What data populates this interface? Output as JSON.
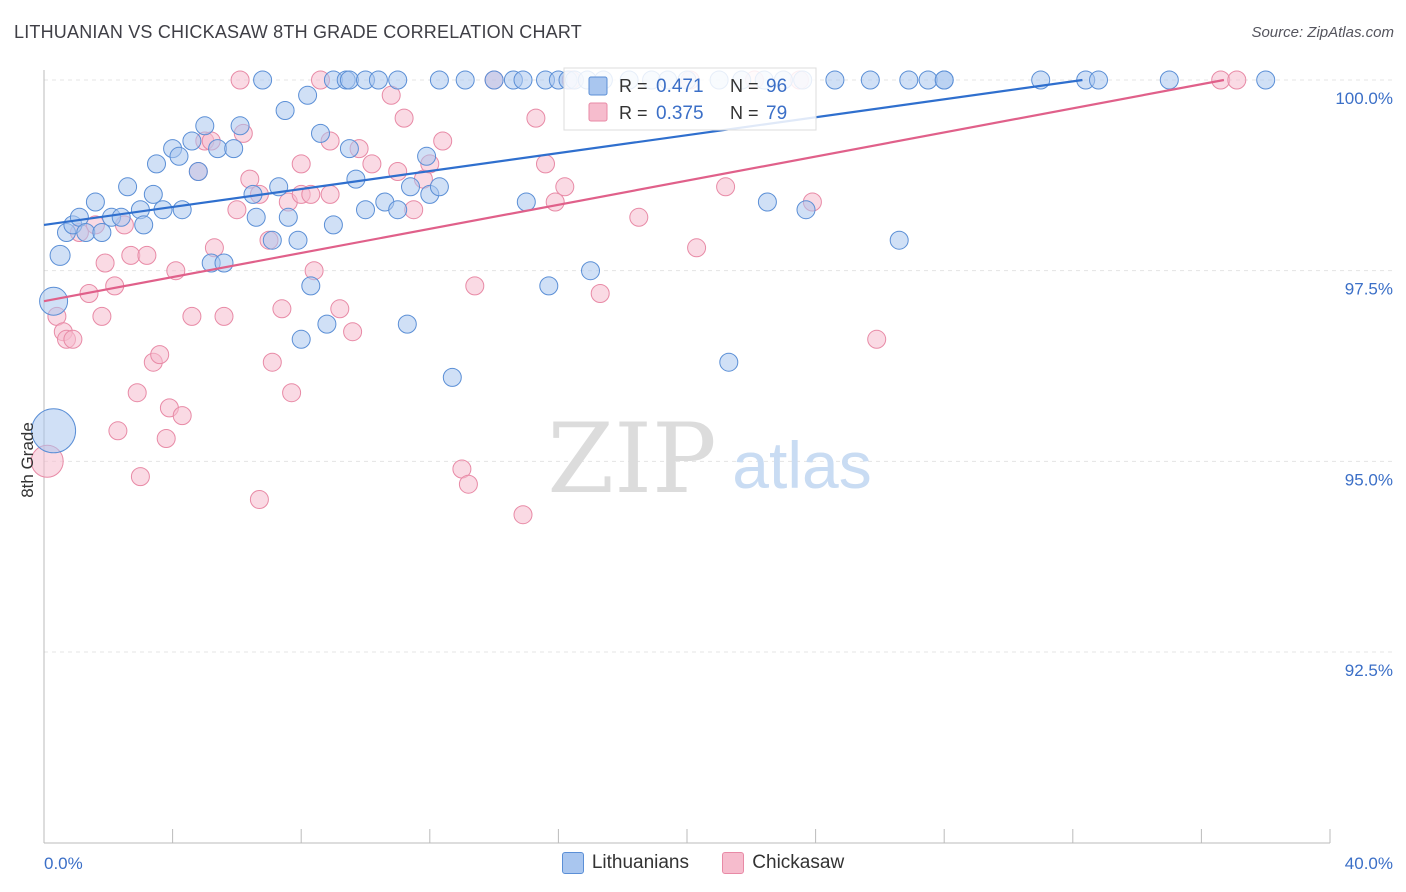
{
  "header": {
    "title": "LITHUANIAN VS CHICKASAW 8TH GRADE CORRELATION CHART",
    "source": "Source: ZipAtlas.com"
  },
  "watermark": {
    "zip": "ZIP",
    "atlas": "atlas"
  },
  "colors": {
    "blue_fill": "#a9c6ef",
    "blue_stroke": "#5b8fd6",
    "blue_line": "#2f6fce",
    "pink_fill": "#f6bccd",
    "pink_stroke": "#e88aa6",
    "pink_line": "#e0608a",
    "tick_label": "#3b6fc7"
  },
  "stats_legend": {
    "rows": [
      {
        "r_label": "R = ",
        "r_value": "0.471",
        "n_label": "N = ",
        "n_value": "96"
      },
      {
        "r_label": "R = ",
        "r_value": "0.375",
        "n_label": "N = ",
        "n_value": "79"
      }
    ]
  },
  "chart_data": {
    "type": "scatter",
    "title": "LITHUANIAN VS CHICKASAW 8TH GRADE CORRELATION CHART",
    "xlabel": "",
    "ylabel": "8th Grade",
    "xlim": [
      0,
      40
    ],
    "ylim": [
      90.0,
      100.3
    ],
    "x_tick_labels": [
      "0.0%",
      "40.0%"
    ],
    "y_ticks": [
      100.0,
      97.5,
      95.0,
      92.5
    ],
    "y_tick_labels": [
      "100.0%",
      "97.5%",
      "95.0%",
      "92.5%"
    ],
    "grid": true,
    "legend_position": "bottom",
    "series": [
      {
        "name": "Lithuanians",
        "r": 0.471,
        "n": 96,
        "trend": [
          [
            0.0,
            98.1
          ],
          [
            32.3,
            100.0
          ]
        ],
        "points": [
          [
            0.3,
            97.1,
            14
          ],
          [
            0.3,
            95.4,
            22
          ],
          [
            0.5,
            97.7,
            10
          ],
          [
            0.7,
            98.0,
            9
          ],
          [
            0.9,
            98.1,
            9
          ],
          [
            1.1,
            98.2,
            9
          ],
          [
            1.3,
            98.0,
            9
          ],
          [
            1.6,
            98.4,
            9
          ],
          [
            1.8,
            98.0,
            9
          ],
          [
            2.1,
            98.2,
            9
          ],
          [
            2.4,
            98.2,
            9
          ],
          [
            2.6,
            98.6,
            9
          ],
          [
            3.0,
            98.3,
            9
          ],
          [
            3.1,
            98.1,
            9
          ],
          [
            3.4,
            98.5,
            9
          ],
          [
            3.5,
            98.9,
            9
          ],
          [
            3.7,
            98.3,
            9
          ],
          [
            4.0,
            99.1,
            9
          ],
          [
            4.2,
            99.0,
            9
          ],
          [
            4.3,
            98.3,
            9
          ],
          [
            4.6,
            99.2,
            9
          ],
          [
            4.8,
            98.8,
            9
          ],
          [
            5.0,
            99.4,
            9
          ],
          [
            5.2,
            97.6,
            9
          ],
          [
            5.4,
            99.1,
            9
          ],
          [
            5.6,
            97.6,
            9
          ],
          [
            5.9,
            99.1,
            9
          ],
          [
            6.1,
            99.4,
            9
          ],
          [
            6.5,
            98.5,
            9
          ],
          [
            6.6,
            98.2,
            9
          ],
          [
            6.8,
            100.0,
            9
          ],
          [
            7.1,
            97.9,
            9
          ],
          [
            7.3,
            98.6,
            9
          ],
          [
            7.5,
            99.6,
            9
          ],
          [
            7.6,
            98.2,
            9
          ],
          [
            7.9,
            97.9,
            9
          ],
          [
            8.2,
            99.8,
            9
          ],
          [
            8.0,
            96.6,
            9
          ],
          [
            8.3,
            97.3,
            9
          ],
          [
            8.6,
            99.3,
            9
          ],
          [
            8.8,
            96.8,
            9
          ],
          [
            9.0,
            98.1,
            9
          ],
          [
            9.0,
            100.0,
            9
          ],
          [
            9.4,
            100.0,
            9
          ],
          [
            9.5,
            100.0,
            9
          ],
          [
            9.5,
            99.1,
            9
          ],
          [
            9.7,
            98.7,
            9
          ],
          [
            10.0,
            100.0,
            9
          ],
          [
            10.0,
            98.3,
            9
          ],
          [
            10.4,
            100.0,
            9
          ],
          [
            10.6,
            98.4,
            9
          ],
          [
            11.0,
            100.0,
            9
          ],
          [
            11.0,
            98.3,
            9
          ],
          [
            11.3,
            96.8,
            9
          ],
          [
            11.4,
            98.6,
            9
          ],
          [
            11.9,
            99.0,
            9
          ],
          [
            12.0,
            98.5,
            9
          ],
          [
            12.3,
            98.6,
            9
          ],
          [
            12.3,
            100.0,
            9
          ],
          [
            12.7,
            96.1,
            9
          ],
          [
            13.1,
            100.0,
            9
          ],
          [
            14.0,
            100.0,
            9
          ],
          [
            14.6,
            100.0,
            9
          ],
          [
            14.9,
            100.0,
            9
          ],
          [
            15.0,
            98.4,
            9
          ],
          [
            15.6,
            100.0,
            9
          ],
          [
            15.7,
            97.3,
            9
          ],
          [
            16.0,
            100.0,
            9
          ],
          [
            16.3,
            100.0,
            9
          ],
          [
            16.5,
            100.0,
            9
          ],
          [
            16.9,
            100.0,
            9
          ],
          [
            17.0,
            97.5,
            9
          ],
          [
            17.4,
            100.0,
            9
          ],
          [
            18.2,
            100.0,
            9
          ],
          [
            18.9,
            100.0,
            9
          ],
          [
            19.4,
            100.0,
            9
          ],
          [
            20.0,
            100.0,
            9
          ],
          [
            21.0,
            100.0,
            9
          ],
          [
            21.3,
            96.3,
            9
          ],
          [
            21.7,
            100.0,
            9
          ],
          [
            22.4,
            100.0,
            9
          ],
          [
            23.0,
            100.0,
            9
          ],
          [
            23.6,
            100.0,
            9
          ],
          [
            22.5,
            98.4,
            9
          ],
          [
            23.7,
            98.3,
            9
          ],
          [
            24.6,
            100.0,
            9
          ],
          [
            25.7,
            100.0,
            9
          ],
          [
            26.6,
            97.9,
            9
          ],
          [
            26.9,
            100.0,
            9
          ],
          [
            28.0,
            100.0,
            9
          ],
          [
            27.5,
            100.0,
            9
          ],
          [
            28.0,
            100.0,
            9
          ],
          [
            31.0,
            100.0,
            9
          ],
          [
            32.4,
            100.0,
            9
          ],
          [
            32.8,
            100.0,
            9
          ],
          [
            35.0,
            100.0,
            9
          ],
          [
            38.0,
            100.0,
            9
          ]
        ]
      },
      {
        "name": "Chickasaw",
        "r": 0.375,
        "n": 79,
        "trend": [
          [
            0.0,
            97.1
          ],
          [
            36.7,
            100.0
          ]
        ],
        "points": [
          [
            0.1,
            95.0,
            16
          ],
          [
            0.4,
            96.9,
            9
          ],
          [
            0.6,
            96.7,
            9
          ],
          [
            0.7,
            96.6,
            9
          ],
          [
            0.9,
            96.6,
            9
          ],
          [
            1.1,
            98.0,
            9
          ],
          [
            1.4,
            97.2,
            9
          ],
          [
            1.6,
            98.1,
            9
          ],
          [
            1.8,
            96.9,
            9
          ],
          [
            1.9,
            97.6,
            9
          ],
          [
            2.2,
            97.3,
            9
          ],
          [
            2.3,
            95.4,
            9
          ],
          [
            2.5,
            98.1,
            9
          ],
          [
            2.7,
            97.7,
            9
          ],
          [
            2.9,
            95.9,
            9
          ],
          [
            3.0,
            94.8,
            9
          ],
          [
            3.2,
            97.7,
            9
          ],
          [
            3.4,
            96.3,
            9
          ],
          [
            3.6,
            96.4,
            9
          ],
          [
            3.8,
            95.3,
            9
          ],
          [
            3.9,
            95.7,
            9
          ],
          [
            4.1,
            97.5,
            9
          ],
          [
            4.3,
            95.6,
            9
          ],
          [
            4.6,
            96.9,
            9
          ],
          [
            4.8,
            98.8,
            9
          ],
          [
            5.0,
            99.2,
            9
          ],
          [
            5.2,
            99.2,
            9
          ],
          [
            5.3,
            97.8,
            9
          ],
          [
            5.6,
            96.9,
            9
          ],
          [
            6.0,
            98.3,
            9
          ],
          [
            6.1,
            100.0,
            9
          ],
          [
            6.2,
            99.3,
            9
          ],
          [
            6.4,
            98.7,
            9
          ],
          [
            6.7,
            98.5,
            9
          ],
          [
            6.7,
            94.5,
            9
          ],
          [
            7.0,
            97.9,
            9
          ],
          [
            7.1,
            96.3,
            9
          ],
          [
            7.4,
            97.0,
            9
          ],
          [
            7.6,
            98.4,
            9
          ],
          [
            7.7,
            95.9,
            9
          ],
          [
            8.0,
            98.9,
            9
          ],
          [
            8.0,
            98.5,
            9
          ],
          [
            8.3,
            98.5,
            9
          ],
          [
            8.4,
            97.5,
            9
          ],
          [
            8.6,
            100.0,
            9
          ],
          [
            8.9,
            99.2,
            9
          ],
          [
            8.9,
            98.5,
            9
          ],
          [
            9.2,
            97.0,
            9
          ],
          [
            9.6,
            96.7,
            9
          ],
          [
            9.8,
            99.1,
            9
          ],
          [
            10.2,
            98.9,
            9
          ],
          [
            10.8,
            99.8,
            9
          ],
          [
            11.0,
            98.8,
            9
          ],
          [
            11.2,
            99.5,
            9
          ],
          [
            11.5,
            98.3,
            9
          ],
          [
            11.8,
            98.7,
            9
          ],
          [
            12.0,
            98.9,
            9
          ],
          [
            12.4,
            99.2,
            9
          ],
          [
            13.0,
            94.9,
            9
          ],
          [
            13.2,
            94.7,
            9
          ],
          [
            13.4,
            97.3,
            9
          ],
          [
            14.0,
            100.0,
            9
          ],
          [
            14.9,
            94.3,
            9
          ],
          [
            15.3,
            99.5,
            9
          ],
          [
            15.6,
            98.9,
            9
          ],
          [
            15.9,
            98.4,
            9
          ],
          [
            16.2,
            98.6,
            9
          ],
          [
            16.4,
            100.0,
            9
          ],
          [
            17.3,
            97.2,
            9
          ],
          [
            18.5,
            98.2,
            9
          ],
          [
            20.1,
            100.0,
            9
          ],
          [
            20.3,
            97.8,
            9
          ],
          [
            21.2,
            98.6,
            9
          ],
          [
            22.1,
            100.0,
            9
          ],
          [
            23.5,
            100.0,
            9
          ],
          [
            23.9,
            98.4,
            9
          ],
          [
            25.9,
            96.6,
            9
          ],
          [
            36.6,
            100.0,
            9
          ],
          [
            37.1,
            100.0,
            9
          ]
        ]
      }
    ]
  },
  "legend_bottom": [
    {
      "label": "Lithuanians"
    },
    {
      "label": "Chickasaw"
    }
  ]
}
